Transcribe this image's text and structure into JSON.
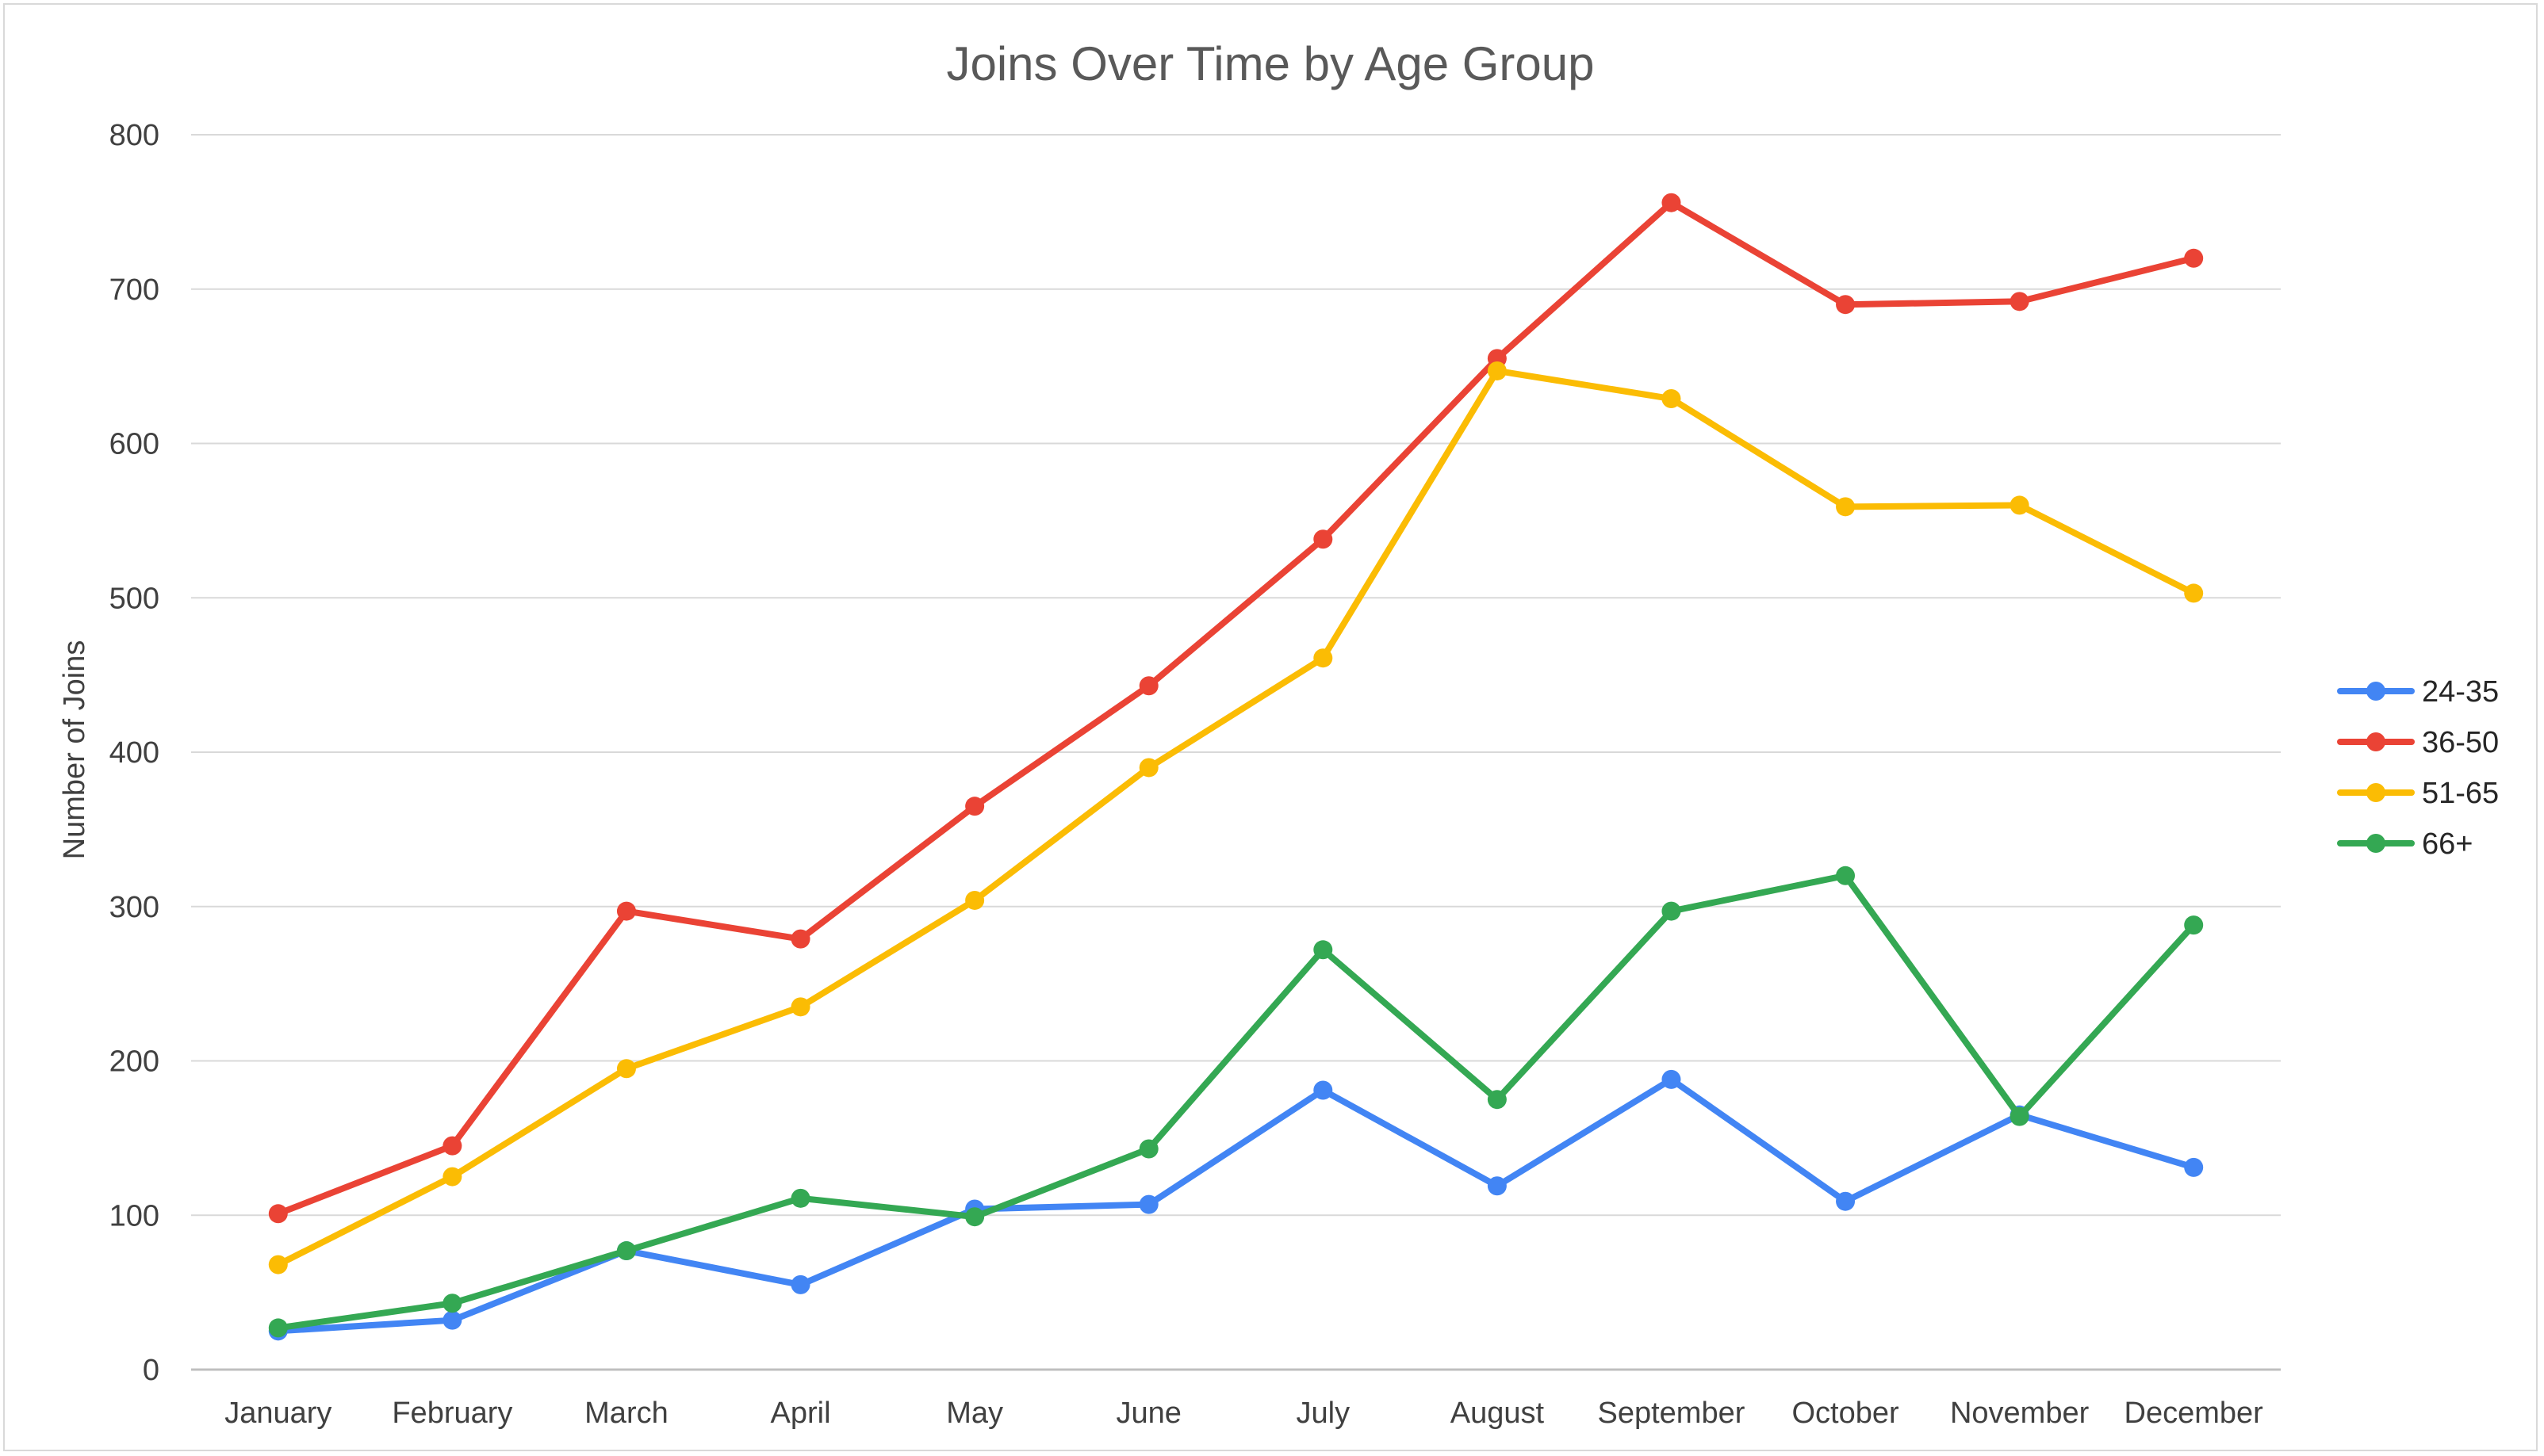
{
  "chart_data": {
    "type": "line",
    "title": "Joins Over Time by Age Group",
    "xlabel": "",
    "ylabel": "Number of Joins",
    "ylim": [
      0,
      800
    ],
    "yticks": [
      0,
      100,
      200,
      300,
      400,
      500,
      600,
      700,
      800
    ],
    "grid": true,
    "legend_position": "right",
    "categories": [
      "January",
      "February",
      "March",
      "April",
      "May",
      "June",
      "July",
      "August",
      "September",
      "October",
      "November",
      "December"
    ],
    "series": [
      {
        "name": "24-35",
        "color": "#4285f4",
        "values": [
          25,
          32,
          77,
          55,
          104,
          107,
          181,
          119,
          188,
          109,
          165,
          131
        ]
      },
      {
        "name": "36-50",
        "color": "#ea4335",
        "values": [
          101,
          145,
          297,
          279,
          365,
          443,
          538,
          655,
          756,
          690,
          692,
          720
        ]
      },
      {
        "name": "51-65",
        "color": "#fbbc04",
        "values": [
          68,
          125,
          195,
          235,
          304,
          390,
          461,
          647,
          629,
          559,
          560,
          503
        ]
      },
      {
        "name": "66+",
        "color": "#34a853",
        "values": [
          27,
          43,
          77,
          111,
          99,
          143,
          272,
          175,
          297,
          320,
          164,
          288
        ]
      }
    ]
  }
}
